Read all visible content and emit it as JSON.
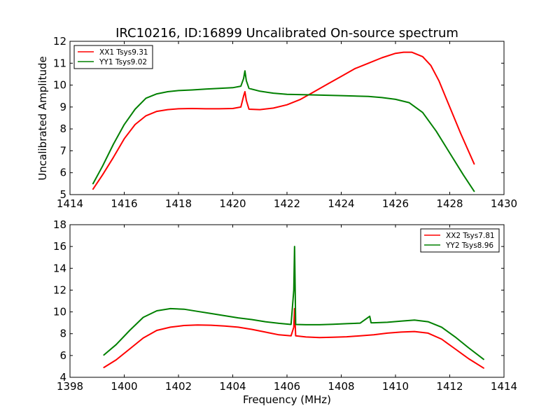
{
  "chart_data": [
    {
      "type": "line",
      "title": "IRC10216, ID:16899 Uncalibrated On-source spectrum",
      "xlabel": "",
      "ylabel": "Uncalibrated Amplitude",
      "xlim": [
        1414,
        1430
      ],
      "ylim": [
        5,
        12
      ],
      "xticks": [
        "1414",
        "1416",
        "1418",
        "1420",
        "1422",
        "1424",
        "1426",
        "1428",
        "1430"
      ],
      "yticks": [
        "5",
        "6",
        "7",
        "8",
        "9",
        "10",
        "11",
        "12"
      ],
      "legend_position": "top-left",
      "series": [
        {
          "name": "XX1 Tsys9.31",
          "color": "#ff0000",
          "x": [
            1414.85,
            1415.2,
            1415.6,
            1416.0,
            1416.4,
            1416.8,
            1417.2,
            1417.6,
            1418.0,
            1418.5,
            1419.0,
            1419.5,
            1420.0,
            1420.3,
            1420.4,
            1420.45,
            1420.5,
            1420.6,
            1421.0,
            1421.5,
            1422.0,
            1422.5,
            1423.0,
            1423.5,
            1424.0,
            1424.5,
            1425.0,
            1425.5,
            1426.0,
            1426.3,
            1426.6,
            1427.0,
            1427.3,
            1427.6,
            1428.0,
            1428.4,
            1428.9
          ],
          "y": [
            5.25,
            5.9,
            6.7,
            7.55,
            8.2,
            8.6,
            8.8,
            8.88,
            8.92,
            8.93,
            8.92,
            8.92,
            8.93,
            9.0,
            9.5,
            9.7,
            9.3,
            8.9,
            8.88,
            8.95,
            9.1,
            9.35,
            9.7,
            10.05,
            10.4,
            10.75,
            11.0,
            11.25,
            11.45,
            11.5,
            11.5,
            11.3,
            10.9,
            10.2,
            9.0,
            7.8,
            6.4
          ]
        },
        {
          "name": "YY1 Tsys9.02",
          "color": "#008000",
          "x": [
            1414.85,
            1415.2,
            1415.6,
            1416.0,
            1416.4,
            1416.8,
            1417.2,
            1417.6,
            1418.0,
            1418.5,
            1419.0,
            1419.5,
            1420.0,
            1420.3,
            1420.4,
            1420.45,
            1420.5,
            1420.6,
            1421.0,
            1421.5,
            1422.0,
            1423.0,
            1424.0,
            1425.0,
            1425.5,
            1426.0,
            1426.5,
            1427.0,
            1427.5,
            1428.0,
            1428.5,
            1428.9
          ],
          "y": [
            5.5,
            6.3,
            7.3,
            8.2,
            8.9,
            9.4,
            9.6,
            9.7,
            9.75,
            9.78,
            9.82,
            9.85,
            9.88,
            9.95,
            10.3,
            10.65,
            10.2,
            9.85,
            9.72,
            9.63,
            9.58,
            9.55,
            9.52,
            9.48,
            9.43,
            9.35,
            9.2,
            8.75,
            7.9,
            6.9,
            5.9,
            5.15
          ]
        }
      ]
    },
    {
      "type": "line",
      "title": "",
      "xlabel": "Frequency (MHz)",
      "ylabel": "",
      "xlim": [
        1398,
        1414
      ],
      "ylim": [
        4,
        18
      ],
      "xticks": [
        "1398",
        "1400",
        "1402",
        "1404",
        "1406",
        "1408",
        "1410",
        "1412",
        "1414"
      ],
      "yticks": [
        "4",
        "6",
        "8",
        "10",
        "12",
        "14",
        "16",
        "18"
      ],
      "legend_position": "top-right",
      "series": [
        {
          "name": "XX2 Tsys7.81",
          "color": "#ff0000",
          "x": [
            1399.25,
            1399.7,
            1400.2,
            1400.7,
            1401.2,
            1401.7,
            1402.2,
            1402.7,
            1403.2,
            1403.7,
            1404.2,
            1404.7,
            1405.2,
            1405.7,
            1406.15,
            1406.25,
            1406.28,
            1406.32,
            1406.7,
            1407.2,
            1407.7,
            1408.2,
            1408.7,
            1409.2,
            1409.7,
            1410.2,
            1410.7,
            1411.2,
            1411.7,
            1412.2,
            1412.7,
            1413.25
          ],
          "y": [
            4.9,
            5.6,
            6.6,
            7.6,
            8.3,
            8.6,
            8.75,
            8.8,
            8.78,
            8.7,
            8.6,
            8.4,
            8.15,
            7.9,
            7.8,
            8.6,
            10.3,
            7.8,
            7.7,
            7.65,
            7.68,
            7.72,
            7.8,
            7.9,
            8.05,
            8.15,
            8.2,
            8.05,
            7.5,
            6.6,
            5.7,
            4.85
          ]
        },
        {
          "name": "YY2 Tsys8.96",
          "color": "#008000",
          "x": [
            1399.25,
            1399.7,
            1400.2,
            1400.7,
            1401.2,
            1401.7,
            1402.2,
            1402.7,
            1403.2,
            1403.7,
            1404.2,
            1404.7,
            1405.2,
            1405.7,
            1406.15,
            1406.25,
            1406.28,
            1406.32,
            1406.7,
            1407.2,
            1407.7,
            1408.2,
            1408.7,
            1409.05,
            1409.1,
            1409.2,
            1409.7,
            1410.2,
            1410.7,
            1411.2,
            1411.7,
            1412.2,
            1412.7,
            1413.25
          ],
          "y": [
            6.05,
            7.0,
            8.3,
            9.5,
            10.1,
            10.3,
            10.25,
            10.05,
            9.85,
            9.65,
            9.45,
            9.3,
            9.1,
            8.95,
            8.85,
            12.0,
            16.0,
            8.85,
            8.82,
            8.82,
            8.87,
            8.92,
            8.97,
            9.6,
            9.0,
            9.0,
            9.05,
            9.15,
            9.25,
            9.1,
            8.6,
            7.7,
            6.7,
            5.65
          ]
        }
      ]
    }
  ]
}
